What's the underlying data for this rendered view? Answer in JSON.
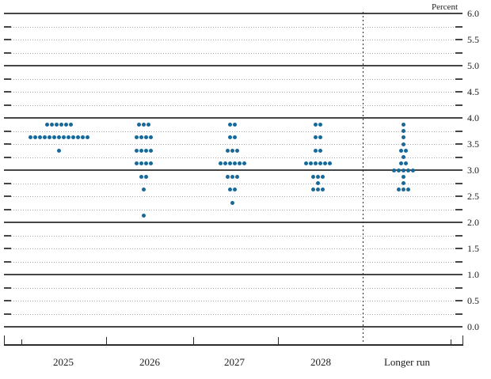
{
  "chart_data": {
    "type": "scatter",
    "title": "",
    "unit_label": "Percent",
    "ylim": [
      0.0,
      6.0
    ],
    "y_label_step": 0.5,
    "y_grid_step": 0.25,
    "grid": "solid lines at integer percents, dotted lines at quarter percents with dark end stubs, no left/right axis spine",
    "legend_position": "none",
    "ytick_labels": [
      "6.0",
      "5.5",
      "5.0",
      "4.5",
      "4.0",
      "3.5",
      "3.0",
      "2.5",
      "2.0",
      "1.5",
      "1.0",
      "0.5",
      "0.0"
    ],
    "categories": [
      "2025",
      "2026",
      "2027",
      "2028",
      "Longer run"
    ],
    "separator_note": "dashed vertical line between 2028 and Longer run",
    "dot_color": "#17699c",
    "series": [
      {
        "name": "2025",
        "distribution": [
          {
            "rate": 3.875,
            "count": 6
          },
          {
            "rate": 3.625,
            "count": 13
          },
          {
            "rate": 3.375,
            "count": 1
          }
        ]
      },
      {
        "name": "2026",
        "distribution": [
          {
            "rate": 3.875,
            "count": 3
          },
          {
            "rate": 3.625,
            "count": 4
          },
          {
            "rate": 3.375,
            "count": 4
          },
          {
            "rate": 3.125,
            "count": 4
          },
          {
            "rate": 2.875,
            "count": 2
          },
          {
            "rate": 2.625,
            "count": 1
          },
          {
            "rate": 2.125,
            "count": 1
          }
        ]
      },
      {
        "name": "2027",
        "distribution": [
          {
            "rate": 3.875,
            "count": 2
          },
          {
            "rate": 3.625,
            "count": 2
          },
          {
            "rate": 3.375,
            "count": 3
          },
          {
            "rate": 3.125,
            "count": 6
          },
          {
            "rate": 2.875,
            "count": 3
          },
          {
            "rate": 2.625,
            "count": 2
          },
          {
            "rate": 2.375,
            "count": 1
          }
        ]
      },
      {
        "name": "2028",
        "distribution": [
          {
            "rate": 3.875,
            "count": 2
          },
          {
            "rate": 3.625,
            "count": 2
          },
          {
            "rate": 3.375,
            "count": 2
          },
          {
            "rate": 3.125,
            "count": 6
          },
          {
            "rate": 2.875,
            "count": 3
          },
          {
            "rate": 2.75,
            "count": 1
          },
          {
            "rate": 2.625,
            "count": 3
          }
        ]
      },
      {
        "name": "Longer run",
        "distribution": [
          {
            "rate": 3.875,
            "count": 1
          },
          {
            "rate": 3.75,
            "count": 1
          },
          {
            "rate": 3.625,
            "count": 1
          },
          {
            "rate": 3.5,
            "count": 1
          },
          {
            "rate": 3.375,
            "count": 2
          },
          {
            "rate": 3.25,
            "count": 1
          },
          {
            "rate": 3.125,
            "count": 2
          },
          {
            "rate": 3.0,
            "count": 5
          },
          {
            "rate": 2.875,
            "count": 1
          },
          {
            "rate": 2.75,
            "count": 1
          },
          {
            "rate": 2.625,
            "count": 3
          }
        ]
      }
    ]
  }
}
